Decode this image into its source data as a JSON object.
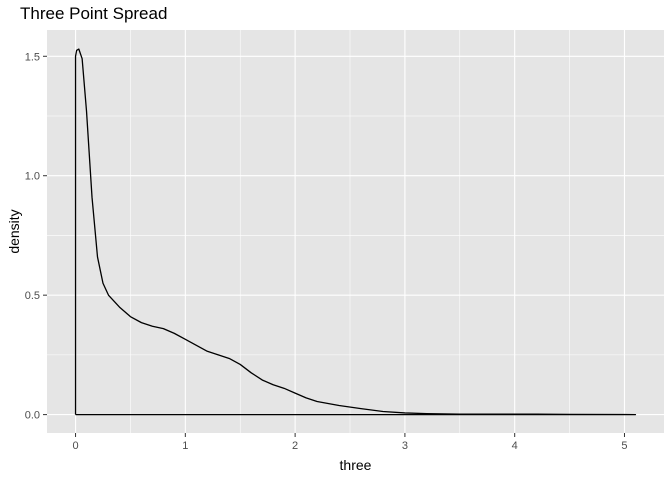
{
  "chart_data": {
    "type": "area",
    "title": "Three Point Spread",
    "xlabel": "three",
    "ylabel": "density",
    "xlim": [
      -0.26,
      5.36
    ],
    "ylim": [
      -0.077,
      1.61
    ],
    "x_ticks": [
      0,
      1,
      2,
      3,
      4,
      5
    ],
    "x_tick_labels": [
      "0",
      "1",
      "2",
      "3",
      "4",
      "5"
    ],
    "y_ticks": [
      0.0,
      0.5,
      1.0,
      1.5
    ],
    "y_tick_labels": [
      "0.0",
      "0.5",
      "1.0",
      "1.5"
    ],
    "grid": true,
    "legend": "none",
    "colors": {
      "panel": "#e5e5e5",
      "grid": "#ffffff",
      "line": "#000000"
    },
    "series": [
      {
        "x": [
          0,
          0,
          0.01,
          0.03,
          0.06,
          0.1,
          0.15,
          0.2,
          0.25,
          0.3,
          0.4,
          0.5,
          0.6,
          0.7,
          0.8,
          0.9,
          1.0,
          1.1,
          1.2,
          1.3,
          1.4,
          1.5,
          1.6,
          1.7,
          1.8,
          1.9,
          2.0,
          2.1,
          2.2,
          2.4,
          2.6,
          2.8,
          3.0,
          3.2,
          3.5,
          4.0,
          4.2,
          4.5,
          5.0,
          5.1,
          5.1,
          0
        ],
        "y": [
          0,
          1.5,
          1.525,
          1.53,
          1.49,
          1.27,
          0.91,
          0.66,
          0.55,
          0.5,
          0.45,
          0.41,
          0.385,
          0.37,
          0.36,
          0.34,
          0.315,
          0.29,
          0.265,
          0.25,
          0.235,
          0.21,
          0.175,
          0.145,
          0.125,
          0.11,
          0.09,
          0.07,
          0.055,
          0.038,
          0.025,
          0.013,
          0.007,
          0.004,
          0.002,
          0.002,
          0.002,
          0.001,
          0.0005,
          0.0,
          0.0,
          0.0
        ]
      }
    ]
  }
}
